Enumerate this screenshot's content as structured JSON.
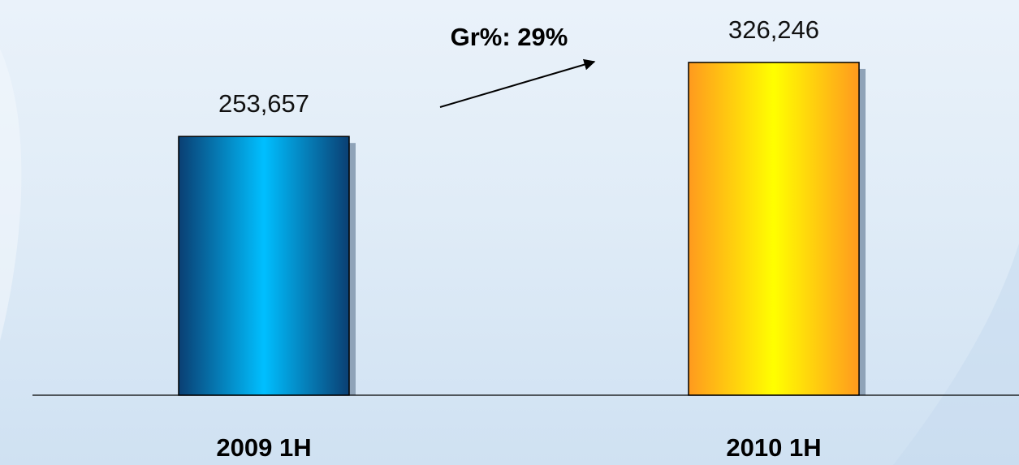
{
  "chart_data": {
    "type": "bar",
    "categories": [
      "2009 1H",
      "2010 1H"
    ],
    "values": [
      253657,
      326246
    ],
    "value_labels": [
      "253,657",
      "326,246"
    ],
    "title": "",
    "xlabel": "",
    "ylabel": "",
    "ylim": [
      0,
      362000
    ],
    "grid": false,
    "legend": "none",
    "annotation": {
      "text": "Gr%: 29%",
      "from_category": "2009 1H",
      "to_category": "2010 1H"
    },
    "colors": {
      "bar_1_edge": "#0a3f73",
      "bar_1_center": "#00bfff",
      "bar_2_edge": "#ff9a1e",
      "bar_2_center": "#ffff00",
      "shadow": "#8fa3b8",
      "axis": "#000000"
    }
  }
}
